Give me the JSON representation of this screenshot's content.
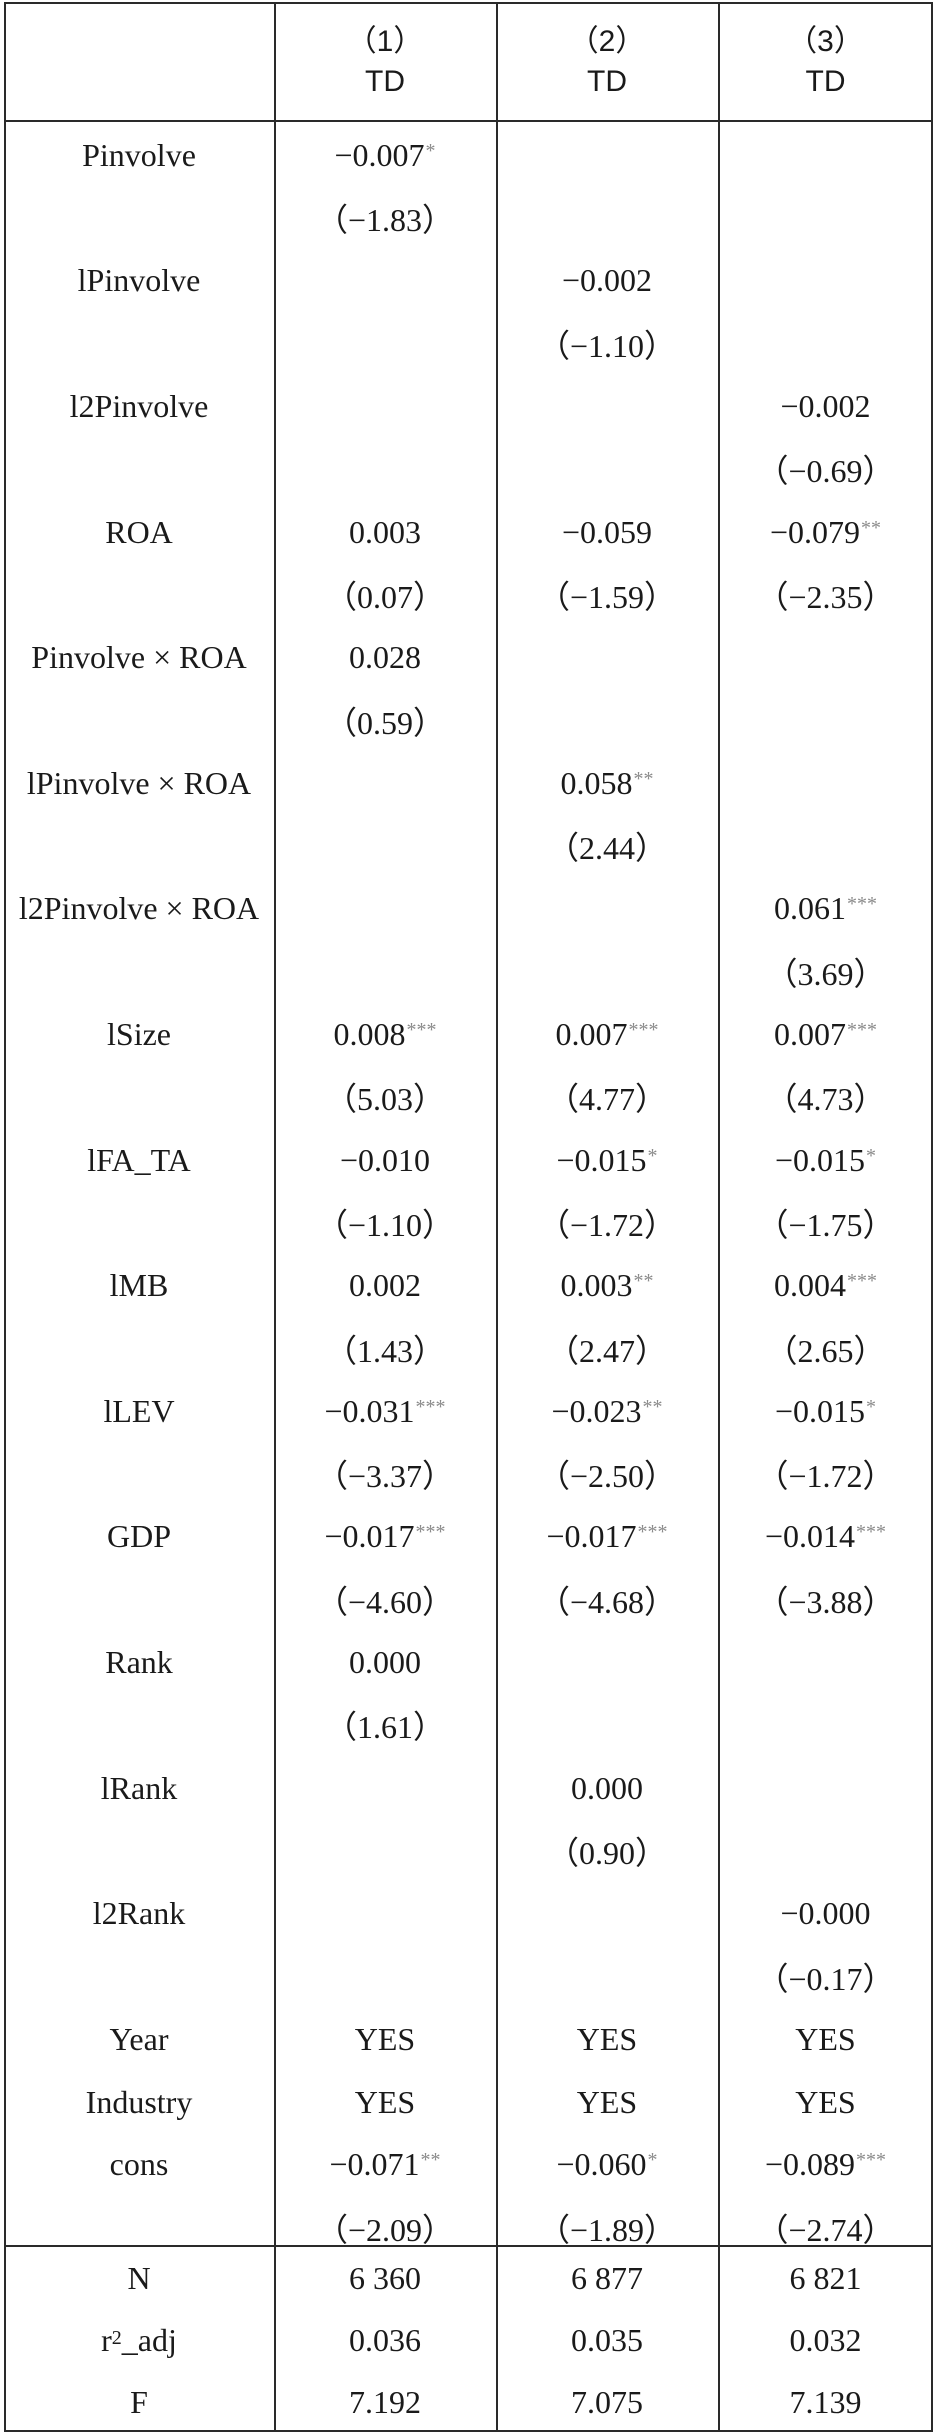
{
  "header": {
    "columns": [
      {
        "num": "（1）",
        "dv": "TD"
      },
      {
        "num": "（2）",
        "dv": "TD"
      },
      {
        "num": "（3）",
        "dv": "TD"
      }
    ]
  },
  "rows": [
    {
      "label": "Pinvolve",
      "cells": [
        {
          "v": "−0.007",
          "s": "*"
        },
        null,
        null
      ]
    },
    {
      "label": "",
      "cells": [
        {
          "v": "（−1.83）",
          "s": ""
        },
        null,
        null
      ]
    },
    {
      "label": "lPinvolve",
      "cells": [
        null,
        {
          "v": "−0.002",
          "s": ""
        },
        null
      ]
    },
    {
      "label": "",
      "cells": [
        null,
        {
          "v": "（−1.10）",
          "s": ""
        },
        null
      ]
    },
    {
      "label": "l2Pinvolve",
      "cells": [
        null,
        null,
        {
          "v": "−0.002",
          "s": ""
        }
      ]
    },
    {
      "label": "",
      "cells": [
        null,
        null,
        {
          "v": "（−0.69）",
          "s": ""
        }
      ]
    },
    {
      "label": "ROA",
      "cells": [
        {
          "v": "0.003",
          "s": ""
        },
        {
          "v": "−0.059",
          "s": ""
        },
        {
          "v": "−0.079",
          "s": "**"
        }
      ]
    },
    {
      "label": "",
      "cells": [
        {
          "v": "（0.07）",
          "s": ""
        },
        {
          "v": "（−1.59）",
          "s": ""
        },
        {
          "v": "（−2.35）",
          "s": ""
        }
      ]
    },
    {
      "label": "Pinvolve × ROA",
      "cells": [
        {
          "v": "0.028",
          "s": ""
        },
        null,
        null
      ]
    },
    {
      "label": "",
      "cells": [
        {
          "v": "（0.59）",
          "s": ""
        },
        null,
        null
      ]
    },
    {
      "label": "lPinvolve × ROA",
      "cells": [
        null,
        {
          "v": "0.058",
          "s": "**"
        },
        null
      ]
    },
    {
      "label": "",
      "cells": [
        null,
        {
          "v": "（2.44）",
          "s": ""
        },
        null
      ]
    },
    {
      "label": "l2Pinvolve × ROA",
      "cells": [
        null,
        null,
        {
          "v": "0.061",
          "s": "***"
        }
      ]
    },
    {
      "label": "",
      "cells": [
        null,
        null,
        {
          "v": "（3.69）",
          "s": ""
        }
      ]
    },
    {
      "label": "lSize",
      "cells": [
        {
          "v": "0.008",
          "s": "***"
        },
        {
          "v": "0.007",
          "s": "***"
        },
        {
          "v": "0.007",
          "s": "***"
        }
      ]
    },
    {
      "label": "",
      "cells": [
        {
          "v": "（5.03）",
          "s": ""
        },
        {
          "v": "（4.77）",
          "s": ""
        },
        {
          "v": "（4.73）",
          "s": ""
        }
      ]
    },
    {
      "label": "lFA_TA",
      "cells": [
        {
          "v": "−0.010",
          "s": ""
        },
        {
          "v": "−0.015",
          "s": "*"
        },
        {
          "v": "−0.015",
          "s": "*"
        }
      ]
    },
    {
      "label": "",
      "cells": [
        {
          "v": "（−1.10）",
          "s": ""
        },
        {
          "v": "（−1.72）",
          "s": ""
        },
        {
          "v": "（−1.75）",
          "s": ""
        }
      ]
    },
    {
      "label": "lMB",
      "cells": [
        {
          "v": "0.002",
          "s": ""
        },
        {
          "v": "0.003",
          "s": "**"
        },
        {
          "v": "0.004",
          "s": "***"
        }
      ]
    },
    {
      "label": "",
      "cells": [
        {
          "v": "（1.43）",
          "s": ""
        },
        {
          "v": "（2.47）",
          "s": ""
        },
        {
          "v": "（2.65）",
          "s": ""
        }
      ]
    },
    {
      "label": "lLEV",
      "cells": [
        {
          "v": "−0.031",
          "s": "***"
        },
        {
          "v": "−0.023",
          "s": "**"
        },
        {
          "v": "−0.015",
          "s": "*"
        }
      ]
    },
    {
      "label": "",
      "cells": [
        {
          "v": "（−3.37）",
          "s": ""
        },
        {
          "v": "（−2.50）",
          "s": ""
        },
        {
          "v": "（−1.72）",
          "s": ""
        }
      ]
    },
    {
      "label": "GDP",
      "cells": [
        {
          "v": "−0.017",
          "s": "***"
        },
        {
          "v": "−0.017",
          "s": "***"
        },
        {
          "v": "−0.014",
          "s": "***"
        }
      ]
    },
    {
      "label": "",
      "cells": [
        {
          "v": "（−4.60）",
          "s": ""
        },
        {
          "v": "（−4.68）",
          "s": ""
        },
        {
          "v": "（−3.88）",
          "s": ""
        }
      ]
    },
    {
      "label": "Rank",
      "cells": [
        {
          "v": "0.000",
          "s": ""
        },
        null,
        null
      ]
    },
    {
      "label": "",
      "cells": [
        {
          "v": "（1.61）",
          "s": ""
        },
        null,
        null
      ]
    },
    {
      "label": "lRank",
      "cells": [
        null,
        {
          "v": "0.000",
          "s": ""
        },
        null
      ]
    },
    {
      "label": "",
      "cells": [
        null,
        {
          "v": "（0.90）",
          "s": ""
        },
        null
      ]
    },
    {
      "label": "l2Rank",
      "cells": [
        null,
        null,
        {
          "v": "−0.000",
          "s": ""
        }
      ]
    },
    {
      "label": "",
      "cells": [
        null,
        null,
        {
          "v": "（−0.17）",
          "s": ""
        }
      ]
    },
    {
      "label": "Year",
      "cells": [
        {
          "v": "YES",
          "s": ""
        },
        {
          "v": "YES",
          "s": ""
        },
        {
          "v": "YES",
          "s": ""
        }
      ]
    },
    {
      "label": "Industry",
      "cells": [
        {
          "v": "YES",
          "s": ""
        },
        {
          "v": "YES",
          "s": ""
        },
        {
          "v": "YES",
          "s": ""
        }
      ]
    },
    {
      "label": "cons",
      "cells": [
        {
          "v": "−0.071",
          "s": "**"
        },
        {
          "v": "−0.060",
          "s": "*"
        },
        {
          "v": "−0.089",
          "s": "***"
        }
      ]
    },
    {
      "label": "",
      "cells": [
        {
          "v": "（−2.09）",
          "s": ""
        },
        {
          "v": "（−1.89）",
          "s": ""
        },
        {
          "v": "（−2.74）",
          "s": ""
        }
      ]
    }
  ],
  "stats": [
    {
      "label": "N",
      "sup": "",
      "cells": [
        "6 360",
        "6 877",
        "6 821"
      ]
    },
    {
      "label": "r_adj",
      "sup": "2",
      "cells": [
        "0.036",
        "0.035",
        "0.032"
      ]
    },
    {
      "label": "F",
      "sup": "",
      "cells": [
        "7.192",
        "7.075",
        "7.139"
      ]
    }
  ]
}
